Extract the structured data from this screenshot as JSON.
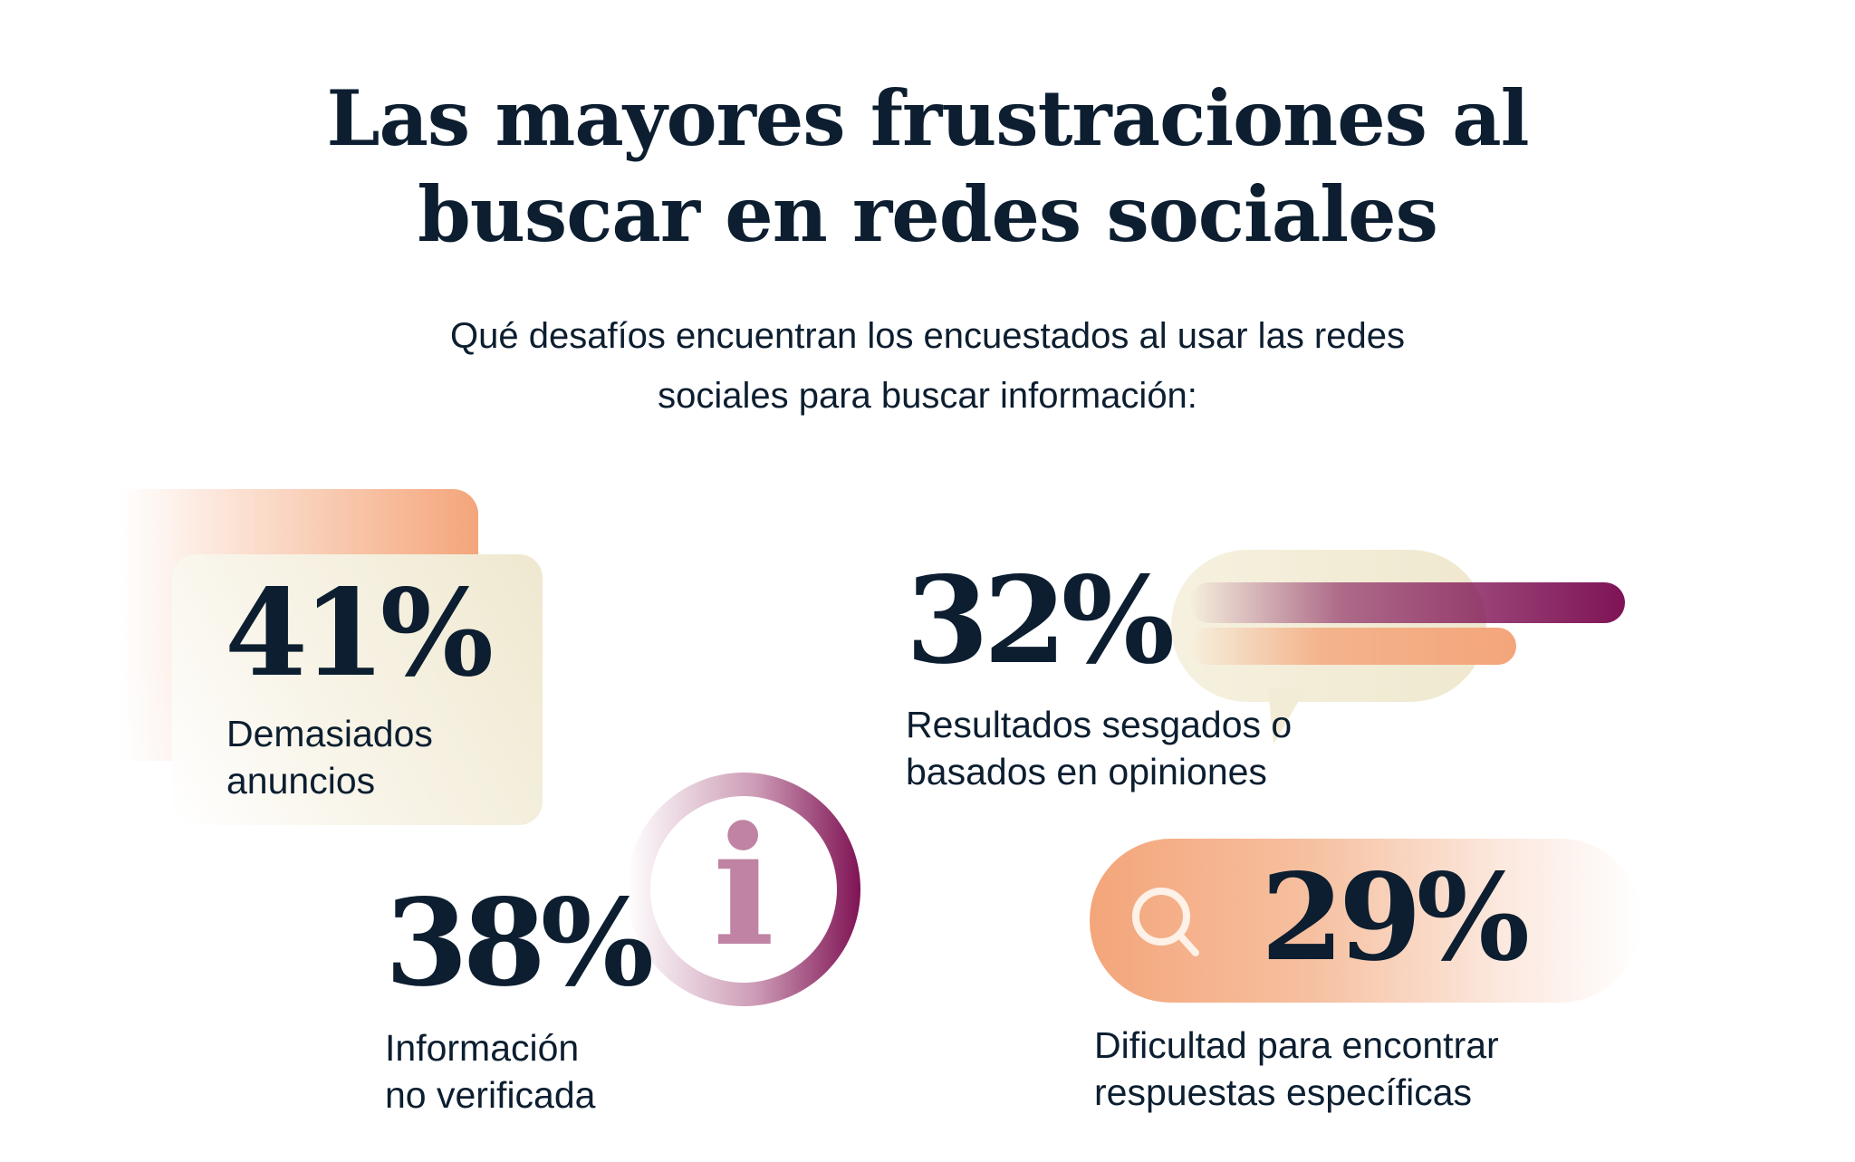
{
  "header": {
    "title_line1": "Las mayores frustraciones al",
    "title_line2": "buscar en redes sociales",
    "subtitle_line1": "Qué desafíos encuentran los encuestados al usar las redes",
    "subtitle_line2": "sociales para buscar información:"
  },
  "stats": [
    {
      "value": "41%",
      "label_line1": "Demasiados",
      "label_line2": "anuncios",
      "icon": "stacked-cards"
    },
    {
      "value": "32%",
      "label_line1": "Resultados sesgados o",
      "label_line2": "basados en opiniones",
      "icon": "speech-bubble-bars"
    },
    {
      "value": "38%",
      "label_line1": "Información",
      "label_line2": "no verificada",
      "icon": "info-icon",
      "icon_glyph": "i"
    },
    {
      "value": "29%",
      "label_line1": "Dificultad para encontrar",
      "label_line2": "respuestas específicas",
      "icon": "search-icon"
    }
  ],
  "colors": {
    "text": "#0c1e30",
    "orange": "#f4a57a",
    "cream": "#efe8d0",
    "purple": "#7f1355",
    "pink": "#c083a3"
  }
}
